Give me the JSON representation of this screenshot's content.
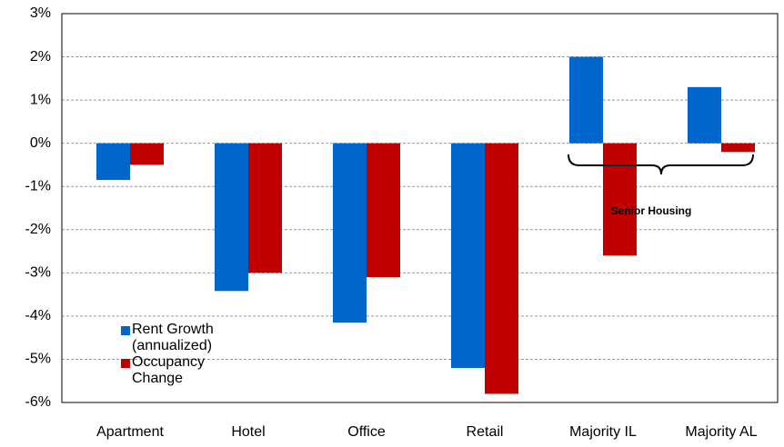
{
  "chart_data": {
    "type": "bar",
    "categories": [
      "Apartment",
      "Hotel",
      "Office",
      "Retail",
      "Majority IL",
      "Majority AL"
    ],
    "series": [
      {
        "name": "Rent Growth (annualized)",
        "color": "#0066cc",
        "values": [
          -0.85,
          -3.42,
          -4.15,
          -5.2,
          2.0,
          1.3
        ]
      },
      {
        "name": "Occupancy Change",
        "color": "#c00000",
        "values": [
          -0.5,
          -3.0,
          -3.1,
          -5.8,
          -2.6,
          -0.2
        ]
      }
    ],
    "ylim": [
      -6,
      3
    ],
    "yticks": [
      {
        "value": -6,
        "label": "-6%"
      },
      {
        "value": -5,
        "label": "-5%"
      },
      {
        "value": -4,
        "label": "-4%"
      },
      {
        "value": -3,
        "label": "-3%"
      },
      {
        "value": -2,
        "label": "-2%"
      },
      {
        "value": -1,
        "label": "-1%"
      },
      {
        "value": 0,
        "label": "0%"
      },
      {
        "value": 1,
        "label": "1%"
      },
      {
        "value": 2,
        "label": "2%"
      },
      {
        "value": 3,
        "label": "3%"
      }
    ],
    "grid": true,
    "annotation": "Senior Housing"
  }
}
